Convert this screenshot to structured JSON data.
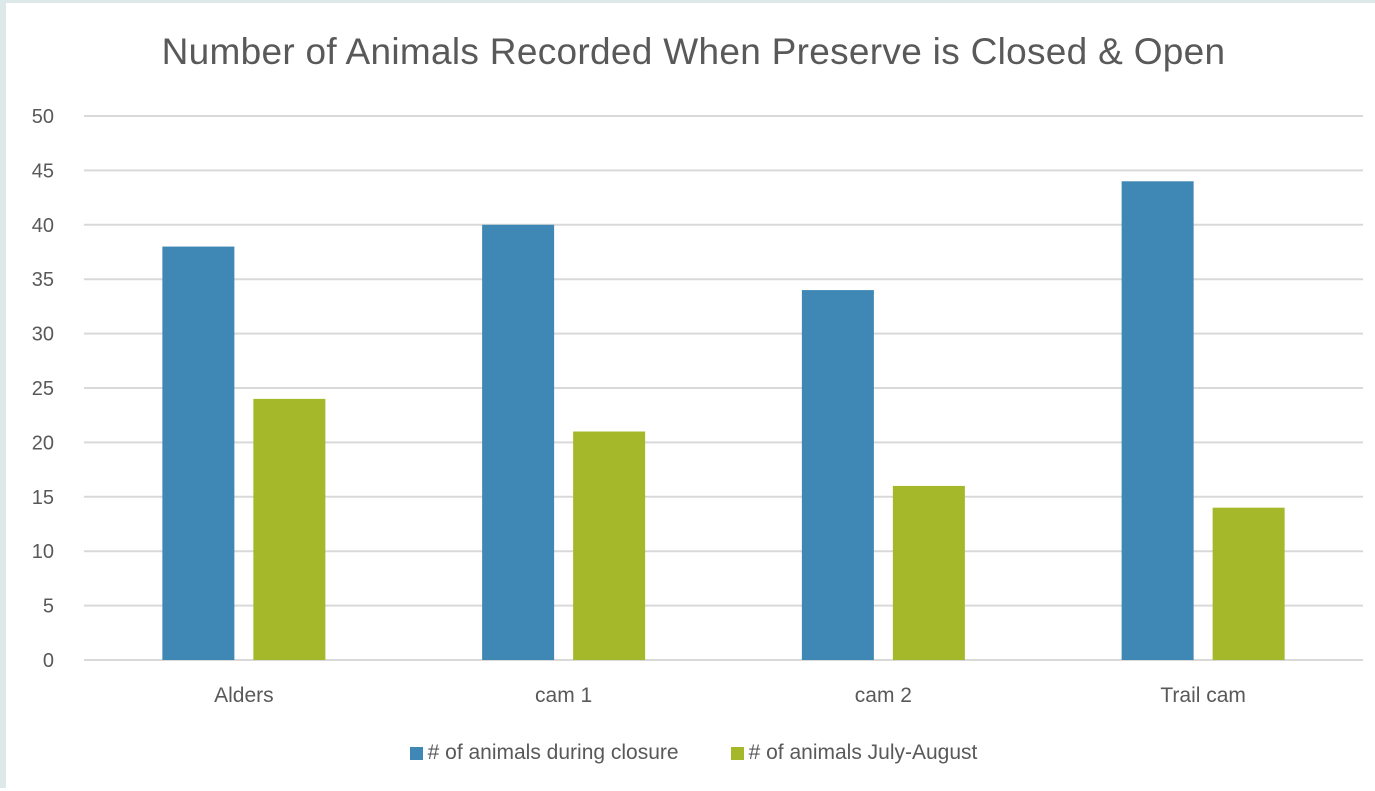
{
  "chart_data": {
    "type": "bar",
    "title": "Number of Animals Recorded When Preserve is Closed & Open",
    "xlabel": "",
    "ylabel": "",
    "categories": [
      "Alders",
      "cam 1",
      "cam 2",
      "Trail cam"
    ],
    "series": [
      {
        "name": "# of animals during closure",
        "values": [
          38,
          40,
          34,
          44
        ],
        "color": "#3f88b5"
      },
      {
        "name": "# of animals July-August",
        "values": [
          24,
          21,
          16,
          14
        ],
        "color": "#a5b82a"
      }
    ],
    "ylim": [
      0,
      50
    ],
    "yticks": [
      "0",
      "5",
      "10",
      "15",
      "20",
      "25",
      "30",
      "35",
      "40",
      "45",
      "50"
    ],
    "grid": true,
    "legend_position": "bottom"
  },
  "colors": {
    "gridline": "#d9d9d9",
    "text": "#595959"
  }
}
